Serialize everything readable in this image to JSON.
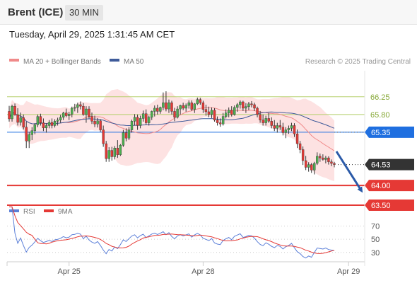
{
  "header": {
    "instrument": "Brent (ICE)",
    "timeframe": "30 MIN",
    "timestamp": "Tuesday, April 29, 2025 1:31:45 AM CET"
  },
  "colors": {
    "bullish": "#4caf50",
    "bearish": "#e53935",
    "ma20": "#f08a8a",
    "bollinger_fill": "#fde2e2",
    "ma50": "#3f5b9a",
    "resistance": "#b5cf6b",
    "support": "#e53935",
    "current": "#333333",
    "pivot": "#1f6fe0",
    "arrow": "#2b5aa8",
    "rsi": "#5b7fd8",
    "rsi_ma": "#e53935"
  },
  "chart_data": [
    {
      "type": "candlestick",
      "title": "",
      "legend": [
        {
          "label": "MA 20 + Bollinger Bands",
          "color": "#f08a8a"
        },
        {
          "label": "MA 50",
          "color": "#3f5b9a"
        }
      ],
      "credit": "Research © 2025 Trading Central",
      "x_ticks": [
        {
          "label": "Apr 25",
          "index": 21
        },
        {
          "label": "Apr 28",
          "index": 68
        },
        {
          "label": "Apr 29",
          "index": 119
        }
      ],
      "ylim": [
        63.5,
        67.0
      ],
      "levels": [
        {
          "label": "66.25",
          "value": 66.25,
          "kind": "resistance"
        },
        {
          "label": "65.80",
          "value": 65.8,
          "kind": "resistance"
        },
        {
          "label": "65.35",
          "value": 65.35,
          "kind": "pivot"
        },
        {
          "label": "64.53",
          "value": 64.53,
          "kind": "current"
        },
        {
          "label": "64.00",
          "value": 64.0,
          "kind": "support"
        },
        {
          "label": "63.50",
          "value": 63.5,
          "kind": "support"
        }
      ],
      "candles": [
        [
          65.88,
          66.02,
          65.62,
          65.69
        ],
        [
          65.69,
          66.05,
          65.62,
          66.01
        ],
        [
          66.01,
          66.08,
          65.77,
          65.79
        ],
        [
          65.79,
          65.96,
          65.52,
          65.6
        ],
        [
          65.6,
          65.85,
          65.52,
          65.72
        ],
        [
          65.72,
          65.8,
          65.42,
          65.48
        ],
        [
          65.48,
          65.62,
          64.95,
          65.13
        ],
        [
          65.13,
          65.36,
          64.95,
          65.29
        ],
        [
          65.29,
          65.48,
          65.15,
          65.39
        ],
        [
          65.39,
          65.58,
          65.3,
          65.54
        ],
        [
          65.54,
          65.8,
          65.48,
          65.75
        ],
        [
          65.75,
          65.82,
          65.52,
          65.59
        ],
        [
          65.59,
          65.7,
          65.38,
          65.46
        ],
        [
          65.46,
          65.58,
          65.34,
          65.52
        ],
        [
          65.52,
          65.66,
          65.45,
          65.6
        ],
        [
          65.6,
          65.7,
          65.45,
          65.52
        ],
        [
          65.52,
          65.68,
          65.47,
          65.63
        ],
        [
          65.63,
          65.72,
          65.52,
          65.66
        ],
        [
          65.66,
          65.79,
          65.59,
          65.73
        ],
        [
          65.73,
          65.87,
          65.66,
          65.84
        ],
        [
          65.84,
          65.95,
          65.73,
          65.77
        ],
        [
          65.77,
          65.87,
          65.66,
          65.81
        ],
        [
          65.81,
          66.0,
          65.73,
          65.96
        ],
        [
          65.96,
          66.07,
          65.88,
          65.98
        ],
        [
          65.98,
          66.1,
          65.84,
          66.05
        ],
        [
          66.05,
          66.13,
          65.93,
          66.01
        ],
        [
          66.01,
          66.09,
          65.77,
          65.8
        ],
        [
          65.8,
          66.01,
          65.59,
          65.94
        ],
        [
          65.94,
          66.01,
          65.7,
          65.75
        ],
        [
          65.75,
          65.85,
          65.56,
          65.63
        ],
        [
          65.63,
          65.77,
          65.48,
          65.56
        ],
        [
          65.56,
          65.71,
          65.47,
          65.64
        ],
        [
          65.64,
          65.68,
          65.36,
          65.41
        ],
        [
          65.41,
          65.52,
          64.98,
          65.06
        ],
        [
          65.06,
          65.13,
          64.6,
          64.68
        ],
        [
          64.68,
          64.97,
          64.6,
          64.89
        ],
        [
          64.89,
          64.98,
          64.63,
          64.73
        ],
        [
          64.73,
          65.0,
          64.66,
          64.95
        ],
        [
          64.95,
          65.15,
          64.7,
          64.78
        ],
        [
          64.78,
          65.05,
          64.75,
          65.02
        ],
        [
          65.02,
          65.41,
          64.98,
          65.34
        ],
        [
          65.34,
          65.45,
          65.12,
          65.2
        ],
        [
          65.2,
          65.48,
          65.15,
          65.41
        ],
        [
          65.41,
          65.67,
          65.34,
          65.63
        ],
        [
          65.63,
          65.81,
          65.52,
          65.73
        ],
        [
          65.73,
          65.8,
          65.41,
          65.52
        ],
        [
          65.52,
          65.77,
          65.45,
          65.7
        ],
        [
          65.7,
          65.9,
          65.62,
          65.82
        ],
        [
          65.82,
          65.93,
          65.54,
          65.59
        ],
        [
          65.59,
          65.77,
          65.52,
          65.73
        ],
        [
          65.73,
          65.9,
          65.66,
          65.88
        ],
        [
          65.88,
          66.03,
          65.75,
          65.96
        ],
        [
          65.96,
          66.05,
          65.8,
          65.88
        ],
        [
          65.88,
          66.0,
          65.82,
          65.98
        ],
        [
          65.98,
          66.36,
          65.91,
          66.1
        ],
        [
          66.1,
          66.39,
          65.88,
          65.94
        ],
        [
          65.94,
          66.18,
          65.84,
          66.1
        ],
        [
          66.1,
          66.15,
          65.8,
          65.88
        ],
        [
          65.88,
          65.97,
          65.63,
          65.73
        ],
        [
          65.73,
          66.01,
          65.7,
          65.94
        ],
        [
          65.94,
          66.05,
          65.8,
          66.03
        ],
        [
          66.03,
          66.1,
          65.91,
          65.96
        ],
        [
          65.96,
          66.08,
          65.87,
          66.03
        ],
        [
          66.03,
          66.16,
          65.95,
          66.1
        ],
        [
          66.1,
          66.16,
          65.89,
          65.93
        ],
        [
          65.93,
          66.09,
          65.84,
          66.07
        ],
        [
          66.07,
          66.23,
          66.04,
          66.18
        ],
        [
          66.18,
          66.22,
          66.05,
          66.1
        ],
        [
          66.1,
          66.15,
          65.84,
          65.93
        ],
        [
          65.93,
          66.05,
          65.77,
          65.87
        ],
        [
          65.87,
          66.0,
          65.73,
          65.8
        ],
        [
          65.8,
          65.98,
          65.71,
          65.91
        ],
        [
          65.91,
          65.96,
          65.62,
          65.66
        ],
        [
          65.66,
          65.75,
          65.52,
          65.59
        ],
        [
          65.59,
          65.7,
          65.49,
          65.56
        ],
        [
          65.56,
          65.84,
          65.52,
          65.75
        ],
        [
          65.75,
          65.93,
          65.7,
          65.84
        ],
        [
          65.84,
          65.98,
          65.73,
          65.91
        ],
        [
          65.91,
          66.01,
          65.75,
          65.8
        ],
        [
          65.8,
          66.03,
          65.77,
          65.98
        ],
        [
          65.98,
          66.09,
          65.87,
          66.05
        ],
        [
          66.05,
          66.16,
          65.95,
          66.12
        ],
        [
          66.12,
          66.15,
          65.89,
          65.96
        ],
        [
          65.96,
          66.09,
          65.84,
          66.0
        ],
        [
          66.0,
          66.12,
          65.91,
          66.07
        ],
        [
          66.07,
          66.14,
          65.98,
          66.05
        ],
        [
          66.05,
          66.1,
          65.89,
          65.96
        ],
        [
          65.96,
          66.0,
          65.73,
          65.8
        ],
        [
          65.8,
          65.89,
          65.59,
          65.66
        ],
        [
          65.66,
          65.8,
          65.52,
          65.59
        ],
        [
          65.59,
          65.77,
          65.52,
          65.7
        ],
        [
          65.7,
          65.84,
          65.59,
          65.63
        ],
        [
          65.63,
          65.73,
          65.45,
          65.52
        ],
        [
          65.52,
          65.66,
          65.38,
          65.45
        ],
        [
          65.45,
          65.59,
          65.34,
          65.52
        ],
        [
          65.52,
          65.66,
          65.41,
          65.48
        ],
        [
          65.48,
          65.59,
          65.27,
          65.34
        ],
        [
          65.34,
          65.48,
          65.2,
          65.41
        ],
        [
          65.41,
          65.52,
          65.31,
          65.45
        ],
        [
          65.45,
          65.59,
          65.38,
          65.52
        ],
        [
          65.52,
          65.58,
          65.23,
          65.31
        ],
        [
          65.31,
          65.42,
          64.95,
          65.06
        ],
        [
          65.06,
          65.13,
          64.82,
          64.91
        ],
        [
          64.91,
          64.99,
          64.52,
          64.63
        ],
        [
          64.63,
          64.75,
          64.39,
          64.46
        ],
        [
          64.46,
          64.59,
          64.35,
          64.53
        ],
        [
          64.53,
          64.57,
          64.32,
          64.39
        ],
        [
          64.39,
          64.6,
          64.28,
          64.56
        ],
        [
          64.56,
          64.84,
          64.52,
          64.74
        ],
        [
          64.74,
          64.81,
          64.6,
          64.7
        ],
        [
          64.7,
          64.79,
          64.63,
          64.66
        ],
        [
          64.66,
          64.75,
          64.56,
          64.7
        ],
        [
          64.7,
          64.74,
          64.53,
          64.6
        ],
        [
          64.6,
          64.66,
          64.49,
          64.56
        ],
        [
          64.56,
          64.6,
          64.46,
          64.53
        ]
      ]
    },
    {
      "type": "line",
      "title": "",
      "legend": [
        {
          "label": "RSI",
          "color": "#5b7fd8"
        },
        {
          "label": "9MA",
          "color": "#e53935"
        }
      ],
      "y_ticks": [
        {
          "label": "70",
          "value": 70
        },
        {
          "label": "50",
          "value": 50
        },
        {
          "label": "30",
          "value": 30
        }
      ],
      "ylim": [
        18,
        78
      ]
    }
  ]
}
